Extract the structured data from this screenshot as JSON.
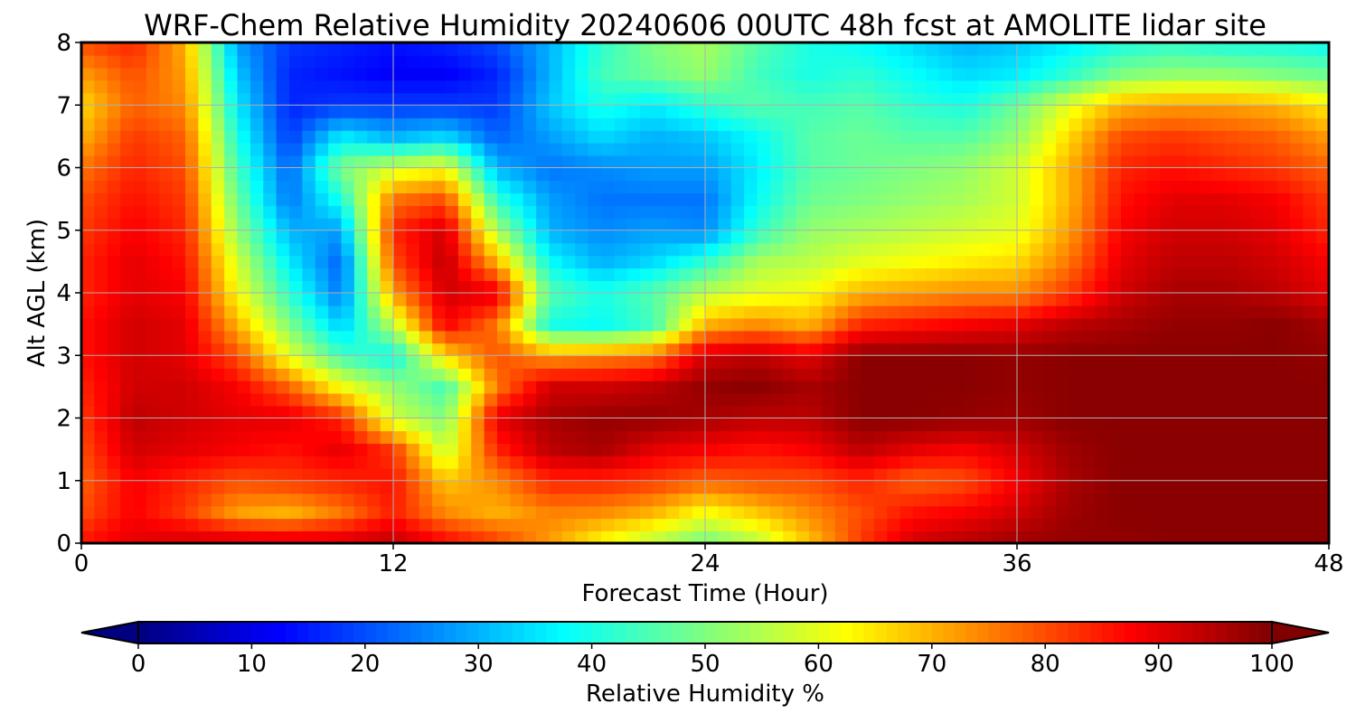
{
  "chart_data": {
    "type": "heatmap",
    "title": "WRF-Chem Relative Humidity 20240606 00UTC 48h fcst at AMOLITE lidar site",
    "xlabel": "Forecast Time (Hour)",
    "ylabel": "Alt AGL (km)",
    "xlim": [
      0,
      48
    ],
    "ylim": [
      0,
      8
    ],
    "xticks": [
      0,
      12,
      24,
      36,
      48
    ],
    "yticks": [
      0,
      1,
      2,
      3,
      4,
      5,
      6,
      7,
      8
    ],
    "grid": true,
    "colormap": "jet",
    "colorbar": {
      "label": "Relative Humidity %",
      "range": [
        0,
        100
      ],
      "ticks": [
        0,
        10,
        20,
        30,
        40,
        50,
        60,
        70,
        80,
        90,
        100
      ],
      "orientation": "horizontal",
      "extend": "both"
    },
    "x_hours": [
      0,
      2,
      4,
      6,
      8,
      10,
      12,
      14,
      16,
      18,
      20,
      22,
      24,
      26,
      28,
      30,
      32,
      34,
      36,
      38,
      40,
      42,
      44,
      46,
      48
    ],
    "y_km": [
      0,
      0.5,
      1,
      1.5,
      2,
      2.5,
      3,
      3.5,
      4,
      4.5,
      5,
      5.5,
      6,
      6.5,
      7,
      7.5,
      8
    ],
    "values": [
      [
        86,
        90,
        92,
        93,
        92,
        92,
        94,
        88,
        82,
        72,
        62,
        55,
        48,
        55,
        68,
        82,
        92,
        95,
        97,
        98,
        98,
        99,
        99,
        99,
        99
      ],
      [
        80,
        88,
        82,
        72,
        70,
        76,
        85,
        74,
        70,
        75,
        74,
        70,
        62,
        68,
        74,
        80,
        86,
        88,
        92,
        97,
        99,
        99,
        99,
        99,
        99
      ],
      [
        78,
        88,
        84,
        80,
        82,
        84,
        86,
        68,
        74,
        84,
        84,
        82,
        78,
        80,
        80,
        84,
        78,
        80,
        88,
        96,
        99,
        99,
        99,
        99,
        99
      ],
      [
        80,
        92,
        90,
        88,
        86,
        90,
        82,
        56,
        84,
        94,
        96,
        90,
        88,
        86,
        88,
        94,
        90,
        88,
        92,
        97,
        99,
        99,
        99,
        99,
        99
      ],
      [
        82,
        94,
        92,
        90,
        90,
        84,
        58,
        50,
        90,
        96,
        98,
        98,
        96,
        94,
        94,
        99,
        99,
        98,
        97,
        99,
        99,
        99,
        99,
        99,
        99
      ],
      [
        84,
        92,
        92,
        88,
        78,
        62,
        52,
        44,
        76,
        92,
        92,
        94,
        98,
        99,
        96,
        99,
        99,
        99,
        98,
        99,
        99,
        99,
        99,
        99,
        99
      ],
      [
        86,
        92,
        90,
        80,
        60,
        44,
        38,
        66,
        80,
        72,
        74,
        76,
        92,
        94,
        90,
        99,
        99,
        99,
        98,
        99,
        99,
        99,
        99,
        99,
        98
      ],
      [
        86,
        92,
        90,
        70,
        50,
        32,
        56,
        88,
        76,
        40,
        38,
        44,
        70,
        74,
        70,
        84,
        86,
        88,
        90,
        94,
        96,
        98,
        98,
        99,
        96
      ],
      [
        84,
        90,
        88,
        62,
        42,
        24,
        72,
        92,
        90,
        46,
        40,
        46,
        56,
        60,
        62,
        70,
        72,
        74,
        74,
        82,
        92,
        96,
        96,
        94,
        90
      ],
      [
        84,
        90,
        86,
        58,
        36,
        22,
        80,
        94,
        70,
        38,
        30,
        34,
        42,
        54,
        56,
        60,
        62,
        64,
        66,
        76,
        90,
        94,
        94,
        92,
        88
      ],
      [
        82,
        88,
        84,
        52,
        30,
        28,
        84,
        92,
        54,
        30,
        26,
        28,
        26,
        42,
        52,
        54,
        56,
        58,
        60,
        72,
        88,
        92,
        92,
        90,
        84
      ],
      [
        80,
        86,
        82,
        48,
        24,
        40,
        76,
        80,
        42,
        28,
        24,
        24,
        24,
        38,
        48,
        50,
        52,
        54,
        58,
        70,
        86,
        90,
        90,
        88,
        82
      ],
      [
        76,
        84,
        80,
        44,
        22,
        50,
        58,
        62,
        30,
        24,
        26,
        28,
        28,
        36,
        46,
        48,
        50,
        52,
        58,
        70,
        84,
        86,
        84,
        82,
        78
      ],
      [
        70,
        82,
        78,
        40,
        18,
        36,
        30,
        34,
        22,
        28,
        34,
        30,
        32,
        38,
        46,
        48,
        46,
        46,
        52,
        66,
        80,
        82,
        80,
        78,
        72
      ],
      [
        66,
        78,
        74,
        36,
        16,
        18,
        18,
        18,
        18,
        32,
        40,
        36,
        42,
        46,
        44,
        46,
        42,
        40,
        48,
        60,
        70,
        72,
        72,
        70,
        64
      ],
      [
        72,
        80,
        72,
        32,
        16,
        14,
        12,
        12,
        16,
        30,
        44,
        48,
        52,
        44,
        40,
        42,
        38,
        34,
        36,
        42,
        50,
        52,
        52,
        50,
        48
      ],
      [
        80,
        84,
        70,
        28,
        18,
        16,
        14,
        16,
        20,
        30,
        42,
        50,
        54,
        46,
        40,
        38,
        34,
        30,
        32,
        36,
        40,
        42,
        40,
        40,
        38
      ]
    ]
  }
}
